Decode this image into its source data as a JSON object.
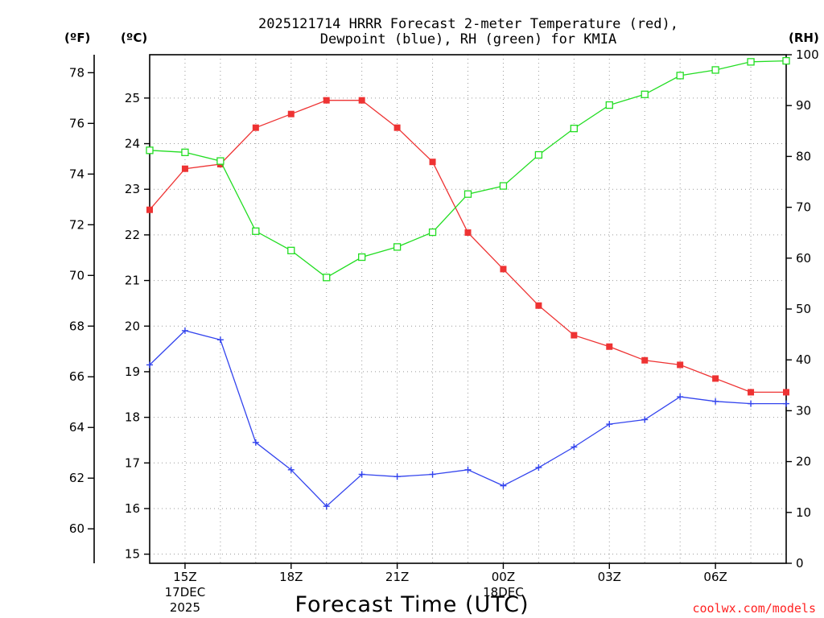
{
  "chart_data": {
    "type": "line",
    "title": [
      "2025121714 HRRR Forecast 2-meter Temperature (red),",
      "Dewpoint (blue), RH (green) for KMIA"
    ],
    "xlabel": "Forecast Time (UTC)",
    "credit": "coolwx.com/models",
    "axes": {
      "fahrenheit": {
        "label": "(ºF)",
        "ticks": [
          "60",
          "62",
          "64",
          "66",
          "68",
          "70",
          "72",
          "74",
          "76",
          "78"
        ]
      },
      "celsius": {
        "label": "(ºC)",
        "range": [
          14.8,
          25.95
        ],
        "ticks": [
          "15",
          "16",
          "17",
          "18",
          "19",
          "20",
          "21",
          "22",
          "23",
          "24",
          "25"
        ]
      },
      "rh": {
        "label": "(RH)",
        "range": [
          0,
          100
        ],
        "ticks": [
          "0",
          "10",
          "20",
          "30",
          "40",
          "50",
          "60",
          "70",
          "80",
          "90",
          "100"
        ]
      }
    },
    "x_ticks": [
      {
        "hour": 15,
        "lines": [
          "15Z",
          "17DEC",
          "2025"
        ]
      },
      {
        "hour": 18,
        "lines": [
          "18Z"
        ]
      },
      {
        "hour": 21,
        "lines": [
          "21Z"
        ]
      },
      {
        "hour": 24,
        "lines": [
          "00Z",
          "18DEC"
        ]
      },
      {
        "hour": 27,
        "lines": [
          "03Z"
        ]
      },
      {
        "hour": 30,
        "lines": [
          "06Z"
        ]
      }
    ],
    "x_range": [
      14,
      32
    ],
    "x": [
      14,
      15,
      16,
      17,
      18,
      19,
      20,
      21,
      22,
      23,
      24,
      25,
      26,
      27,
      28,
      29,
      30,
      31,
      32
    ],
    "grid": true,
    "series": [
      {
        "axis": "celsius",
        "color": "#ee3333",
        "marker": "filled-square",
        "values": [
          22.55,
          23.45,
          23.55,
          24.35,
          24.65,
          24.95,
          24.95,
          24.35,
          23.6,
          22.05,
          21.25,
          20.45,
          19.8,
          19.55,
          19.25,
          19.15,
          18.85,
          18.55,
          18.55
        ]
      },
      {
        "axis": "celsius",
        "color": "#3344ee",
        "marker": "plus",
        "values": [
          19.15,
          19.9,
          19.7,
          17.45,
          16.85,
          16.05,
          16.75,
          16.7,
          16.75,
          16.85,
          16.5,
          16.9,
          17.35,
          17.85,
          17.95,
          18.45,
          18.35,
          18.3,
          18.3
        ]
      },
      {
        "axis": "rh",
        "color": "#22dd22",
        "marker": "open-square",
        "values": [
          81.2,
          80.8,
          79.1,
          65.3,
          61.5,
          56.2,
          60.2,
          62.2,
          65.1,
          72.6,
          74.2,
          80.3,
          85.5,
          90.1,
          92.2,
          95.9,
          97.0,
          98.6,
          98.8
        ]
      }
    ]
  }
}
